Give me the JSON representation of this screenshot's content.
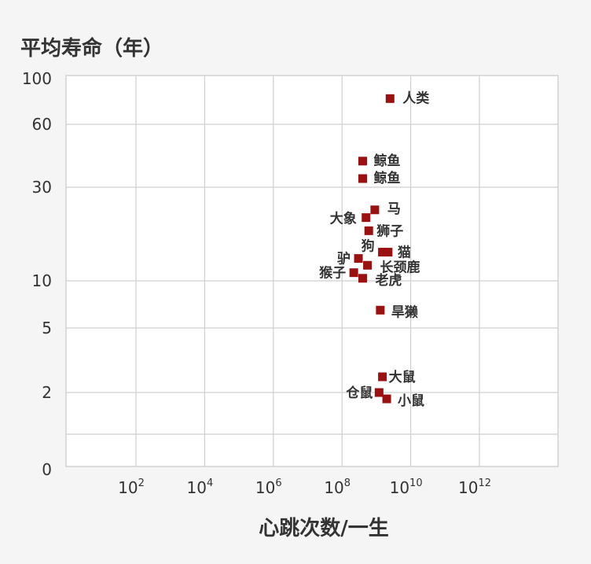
{
  "chart_data": {
    "type": "scatter",
    "title": "平均寿命（年）",
    "xlabel": "心跳次数/一生",
    "ylabel": "平均寿命（年）",
    "x_scale": "log",
    "x_ticks": [
      {
        "base": "10",
        "exp": "2",
        "value": 100
      },
      {
        "base": "10",
        "exp": "4",
        "value": 10000
      },
      {
        "base": "10",
        "exp": "6",
        "value": 1000000
      },
      {
        "base": "10",
        "exp": "8",
        "value": 100000000
      },
      {
        "base": "10",
        "exp": "10",
        "value": 10000000000
      },
      {
        "base": "10",
        "exp": "12",
        "value": 1000000000000
      }
    ],
    "y_scale": "nonlinear",
    "y_ticks": [
      "100",
      "60",
      "30",
      "10",
      "5",
      "2",
      "0"
    ],
    "grid": true,
    "marker_color": "#9b1111",
    "points": [
      {
        "label": "人类",
        "x": 2500000000.0,
        "y": 80
      },
      {
        "label": "鲸鱼",
        "x": 400000000.0,
        "y": 40
      },
      {
        "label": "鲸鱼",
        "x": 400000000.0,
        "y": 33
      },
      {
        "label": "马",
        "x": 900000000.0,
        "y": 23
      },
      {
        "label": "大象",
        "x": 500000000.0,
        "y": 21
      },
      {
        "label": "狮子",
        "x": 600000000.0,
        "y": 18
      },
      {
        "label": "狗",
        "x": 1500000000.0,
        "y": 14
      },
      {
        "label": "猫",
        "x": 2200000000.0,
        "y": 14
      },
      {
        "label": "驴",
        "x": 300000000.0,
        "y": 13
      },
      {
        "label": "长颈鹿",
        "x": 550000000.0,
        "y": 12
      },
      {
        "label": "猴子",
        "x": 220000000.0,
        "y": 11
      },
      {
        "label": "老虎",
        "x": 400000000.0,
        "y": 10.3
      },
      {
        "label": "旱獭",
        "x": 1300000000.0,
        "y": 6.5
      },
      {
        "label": "大鼠",
        "x": 1500000000.0,
        "y": 2.5
      },
      {
        "label": "仓鼠",
        "x": 1200000000.0,
        "y": 2
      },
      {
        "label": "小鼠",
        "x": 2000000000.0,
        "y": 1.8
      }
    ]
  }
}
